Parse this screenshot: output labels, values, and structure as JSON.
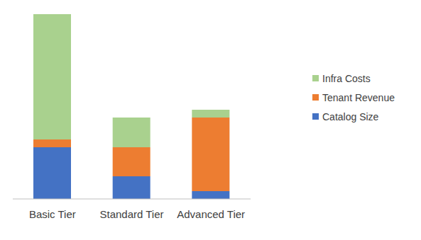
{
  "chart_data": {
    "type": "bar",
    "stacked": true,
    "categories": [
      "Basic Tier",
      "Standard Tier",
      "Advanced Tier"
    ],
    "series": [
      {
        "name": "Catalog Size",
        "color": "#4472c4",
        "values": [
          7.3,
          3.2,
          1.1
        ]
      },
      {
        "name": "Tenant Revenue",
        "color": "#ed7d31",
        "values": [
          1.1,
          4.1,
          10.4
        ]
      },
      {
        "name": "Infra Costs",
        "color": "#a9d18e",
        "values": [
          17.7,
          4.2,
          1.1
        ]
      }
    ],
    "ylim": [
      0,
      26.1
    ],
    "tick_labels": "x",
    "legend": "right"
  }
}
